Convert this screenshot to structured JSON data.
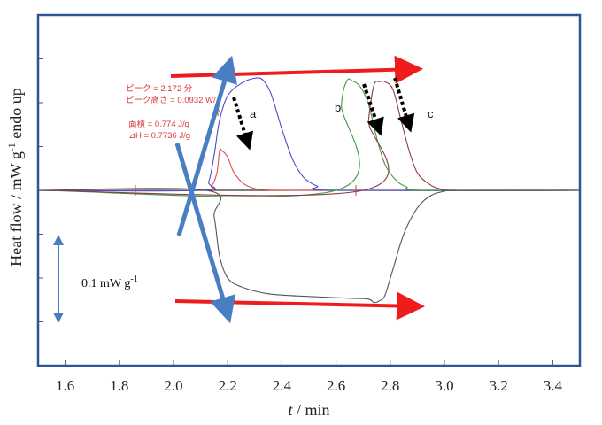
{
  "chart_data": {
    "type": "line",
    "xlabel_var": "t",
    "xlabel_unit": " / min",
    "ylabel": "Heat flow / mW g",
    "ylabel_sup": "-1",
    "ylabel_tail": " endo up",
    "xlim": [
      1.5,
      3.5
    ],
    "xticks": [
      "1.6",
      "1.8",
      "2.0",
      "2.2",
      "2.4",
      "2.6",
      "2.8",
      "3.0",
      "3.2",
      "3.4"
    ],
    "ylim": [
      -0.2,
      0.2
    ],
    "yticks": [
      -0.15,
      -0.1,
      -0.05,
      0,
      0.05,
      0.1,
      0.15
    ],
    "grid": false,
    "series": [
      {
        "color": "#d9534f",
        "x": [
          1.5,
          2.1,
          2.14,
          2.16,
          2.17,
          2.18,
          2.2,
          2.22,
          2.25,
          2.28,
          2.32,
          2.38,
          2.45,
          3.5
        ],
        "values": [
          0,
          0,
          0.005,
          0.02,
          0.045,
          0.045,
          0.038,
          0.022,
          0.01,
          0.004,
          0.001,
          0,
          0,
          0
        ]
      },
      {
        "color": "#4c4cc8",
        "x": [
          1.5,
          2.1,
          2.13,
          2.15,
          2.17,
          2.2,
          2.25,
          2.3,
          2.33,
          2.36,
          2.4,
          2.44,
          2.48,
          2.53,
          2.6,
          3.5
        ],
        "values": [
          0,
          0,
          0.01,
          0.04,
          0.08,
          0.108,
          0.122,
          0.128,
          0.126,
          0.11,
          0.07,
          0.035,
          0.015,
          0.005,
          0,
          0
        ]
      },
      {
        "color": "#3e9a3e",
        "x": [
          1.5,
          2.6,
          2.62,
          2.64,
          2.66,
          2.69,
          2.72,
          2.75,
          2.78,
          2.82,
          2.86,
          2.92,
          3.5
        ],
        "values": [
          0,
          0,
          0.098,
          0.125,
          0.125,
          0.118,
          0.098,
          0.06,
          0.03,
          0.012,
          0.004,
          0,
          0
        ]
      },
      {
        "color": "#8b3a4a",
        "x": [
          1.5,
          2.7,
          2.72,
          2.74,
          2.76,
          2.78,
          2.81,
          2.84,
          2.87,
          2.9,
          2.94,
          2.98,
          3.05,
          3.5
        ],
        "values": [
          0,
          0,
          0.08,
          0.12,
          0.124,
          0.124,
          0.115,
          0.08,
          0.045,
          0.02,
          0.008,
          0.002,
          0,
          0
        ]
      },
      {
        "color": "#555555",
        "x": [
          1.5,
          2.12,
          2.15,
          2.17,
          2.2,
          2.25,
          2.35,
          2.5,
          2.65,
          2.72,
          2.74,
          2.76,
          2.78,
          2.81,
          2.85,
          2.9,
          2.95,
          3.0,
          3.05,
          3.5
        ],
        "values": [
          0,
          0,
          -0.03,
          -0.075,
          -0.1,
          -0.11,
          -0.118,
          -0.121,
          -0.123,
          -0.124,
          -0.128,
          -0.126,
          -0.12,
          -0.09,
          -0.05,
          -0.02,
          -0.006,
          -0.001,
          0,
          0
        ]
      }
    ],
    "annotations": {
      "peak_line1": "ピーク = 2.172 分",
      "peak_line2": "ピーク高さ = 0.0932 W/",
      "area_line1": "面積 = 0.774 J/g",
      "area_line2": "⊿H = 0.7736 J/g",
      "label_a": "a",
      "label_b": "b",
      "label_c": "c",
      "scale_bar_text": "0.1 mW g",
      "scale_bar_sup": "-1"
    },
    "colors": {
      "frame": "#2f5597",
      "red_arrow": "#ee1c1c",
      "blue_arrow": "#4a7ec2",
      "axis_text": "#222222"
    }
  }
}
